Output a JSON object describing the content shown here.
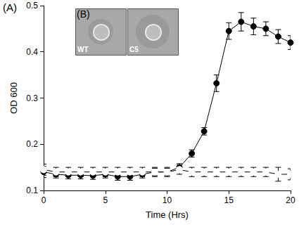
{
  "chart_data": {
    "type": "line",
    "x_label": "Time (Hrs)",
    "y_label": "OD 600",
    "annotations": [
      "(A)"
    ],
    "inset": {
      "title": "(B)",
      "panels": [
        "WT",
        "C5"
      ]
    },
    "x": [
      0,
      1,
      2,
      3,
      4,
      5,
      6,
      7,
      8,
      9,
      10,
      11,
      12,
      13,
      14,
      15,
      16,
      17,
      18,
      19,
      20
    ],
    "series": [
      {
        "color": "#000000",
        "marker": "circle",
        "line_style": "solid",
        "values": [
          0.14,
          0.135,
          0.133,
          0.133,
          0.132,
          0.135,
          0.13,
          0.13,
          0.135,
          0.14,
          0.14,
          0.15,
          0.18,
          0.228,
          0.332,
          0.445,
          0.465,
          0.455,
          0.45,
          0.433,
          0.42
        ],
        "errors": [
          0.012,
          0.008,
          0.008,
          0.008,
          0.008,
          0.008,
          0.008,
          0.008,
          0.008,
          0.008,
          0.008,
          0.008,
          0.008,
          0.008,
          0.018,
          0.018,
          0.02,
          0.018,
          0.015,
          0.015,
          0.015
        ]
      },
      {
        "color": "#000000",
        "marker": "emptyCircle",
        "line_style": "solid",
        "values": [
          0.145,
          0.14,
          0.14,
          0.14,
          0.14,
          0.14,
          0.14,
          0.14,
          0.14,
          0.14,
          0.14,
          0.145,
          0.14,
          0.14,
          0.14,
          0.14,
          0.14,
          0.14,
          0.14,
          0.135,
          0.135
        ],
        "errors": [
          0.012,
          0.01,
          0.01,
          0.01,
          0.01,
          0.01,
          0.01,
          0.01,
          0.01,
          0.01,
          0.01,
          0.01,
          0.01,
          0.01,
          0.01,
          0.01,
          0.01,
          0.01,
          0.01,
          0.015,
          0.012
        ]
      }
    ],
    "xlim": [
      0,
      20
    ],
    "xticks": [
      0,
      5,
      10,
      15,
      20
    ],
    "ylim": [
      0.1,
      0.5
    ],
    "yticks": [
      0.1,
      0.2,
      0.3,
      0.4,
      0.5
    ],
    "grid": false
  }
}
